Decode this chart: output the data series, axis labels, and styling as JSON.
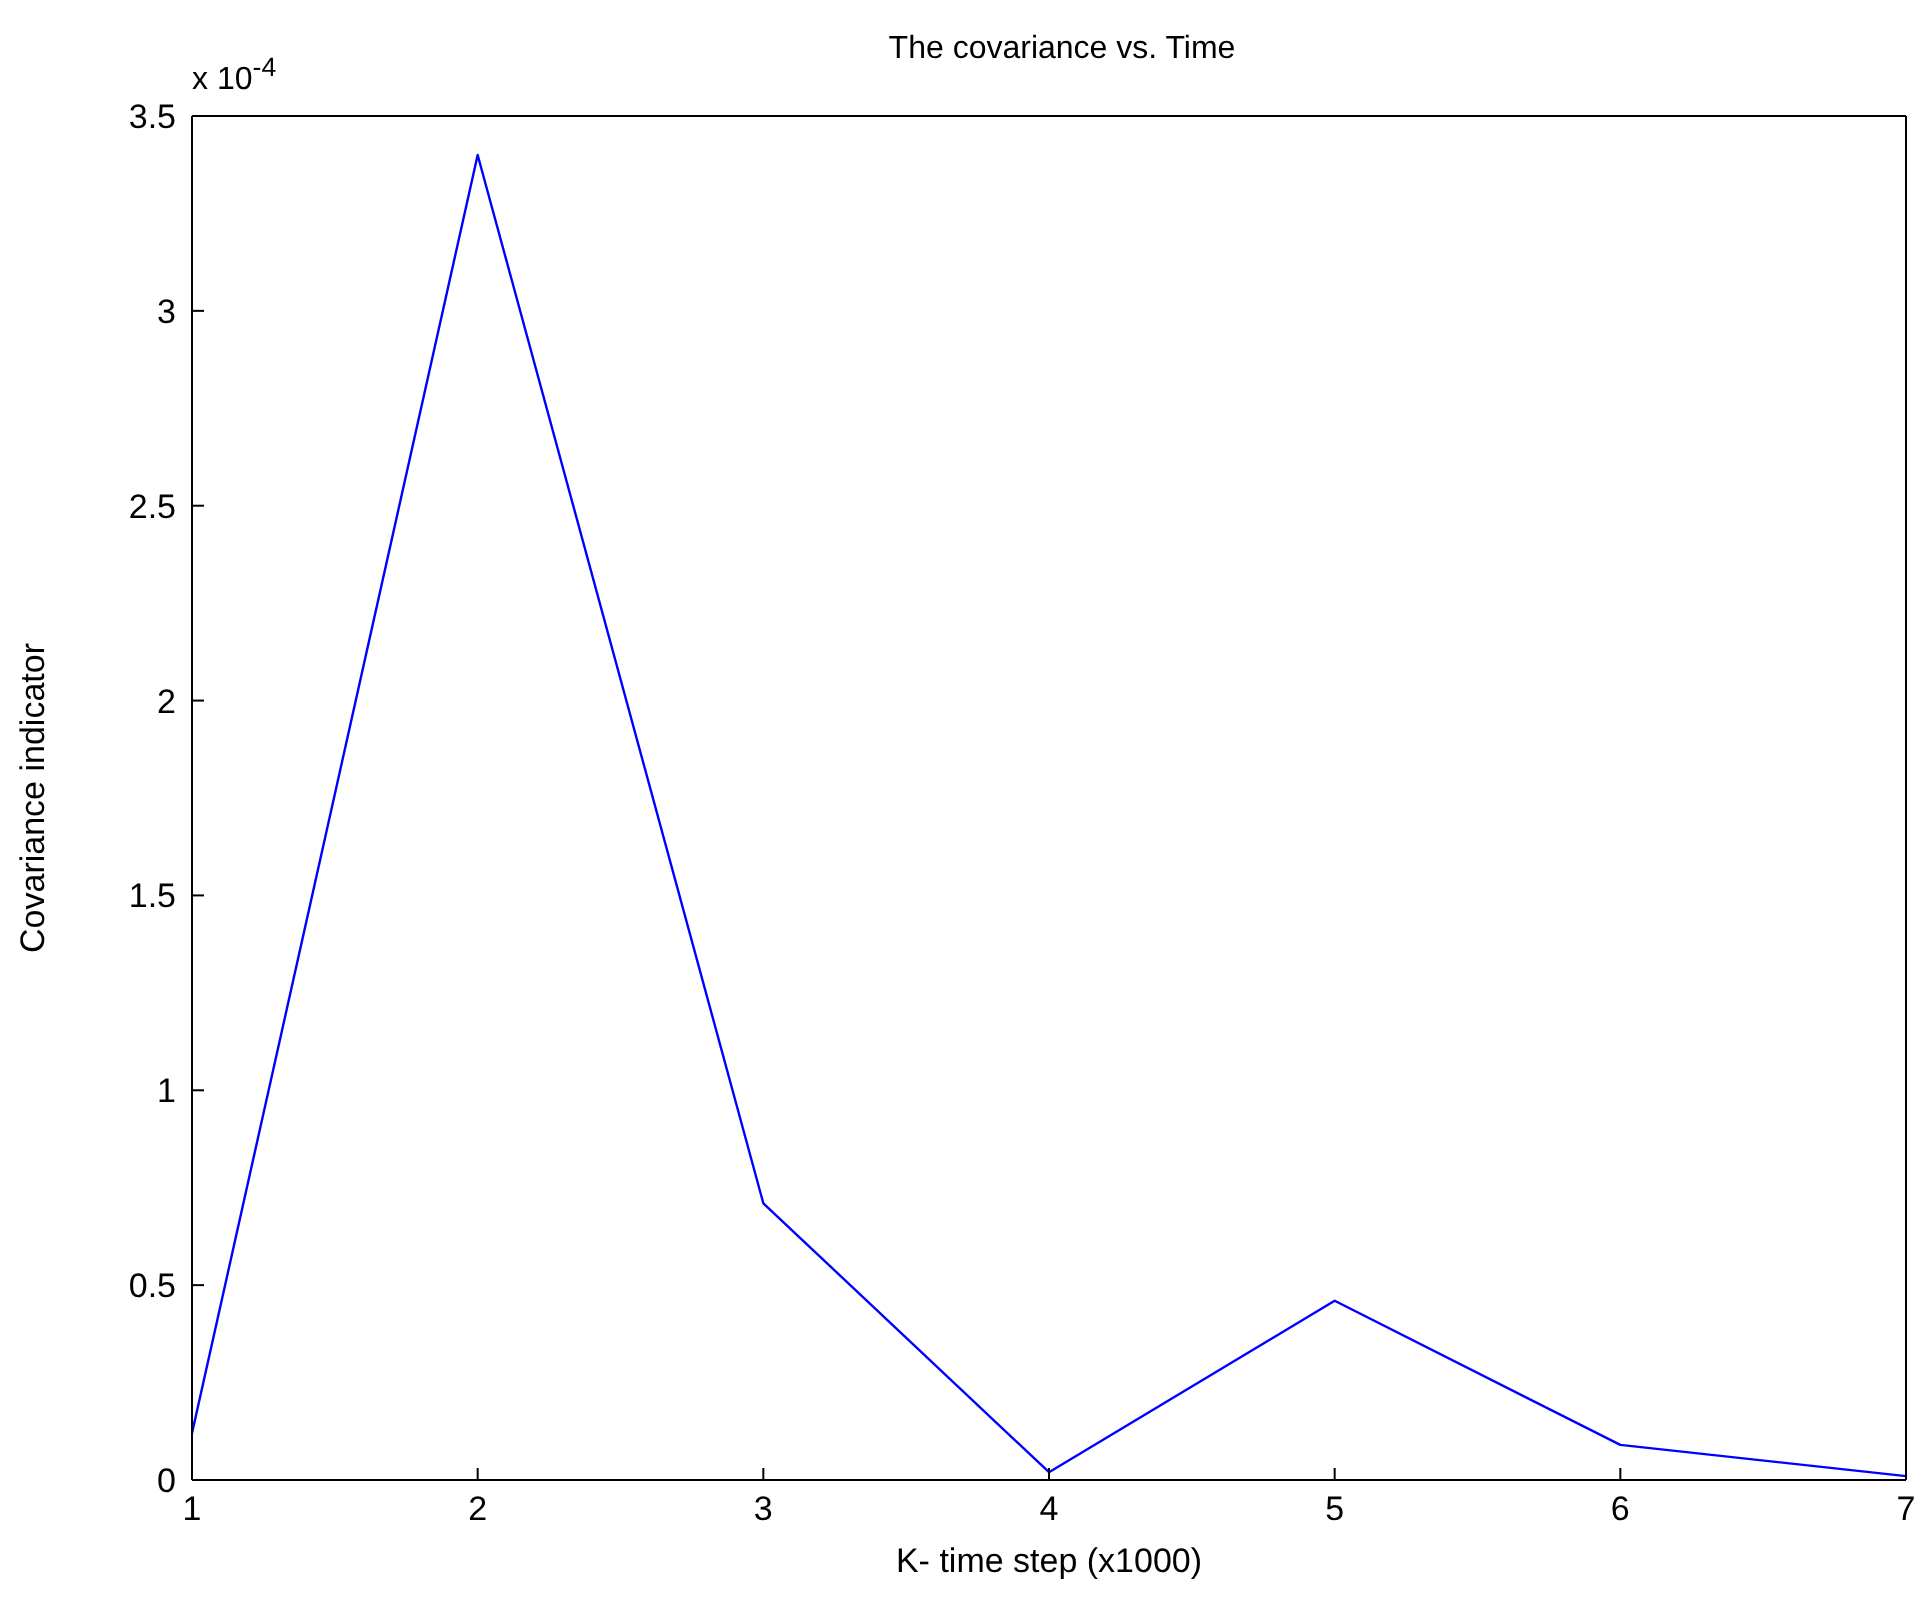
{
  "chart_data": {
    "type": "line",
    "title": "The covariance vs. Time",
    "xlabel": "K- time step (x1000)",
    "ylabel": "Covariance indicator",
    "annotations": [
      "x 10$^{-4}$"
    ],
    "x": [
      1,
      2,
      3,
      4,
      5,
      6,
      7
    ],
    "series": [
      {
        "color": "#0000ff",
        "values": [
          0.12,
          3.4,
          0.71,
          0.02,
          0.46,
          0.09,
          0.01
        ]
      }
    ],
    "xlim": [
      1,
      7
    ],
    "xticks": [
      1,
      2,
      3,
      4,
      5,
      6,
      7
    ],
    "ylim": [
      0,
      3.5
    ],
    "yticks": [
      0,
      0.5,
      1,
      1.5,
      2,
      2.5,
      3,
      3.5
    ],
    "grid": false,
    "legend": false,
    "marker": "none",
    "line_style": "solid"
  }
}
